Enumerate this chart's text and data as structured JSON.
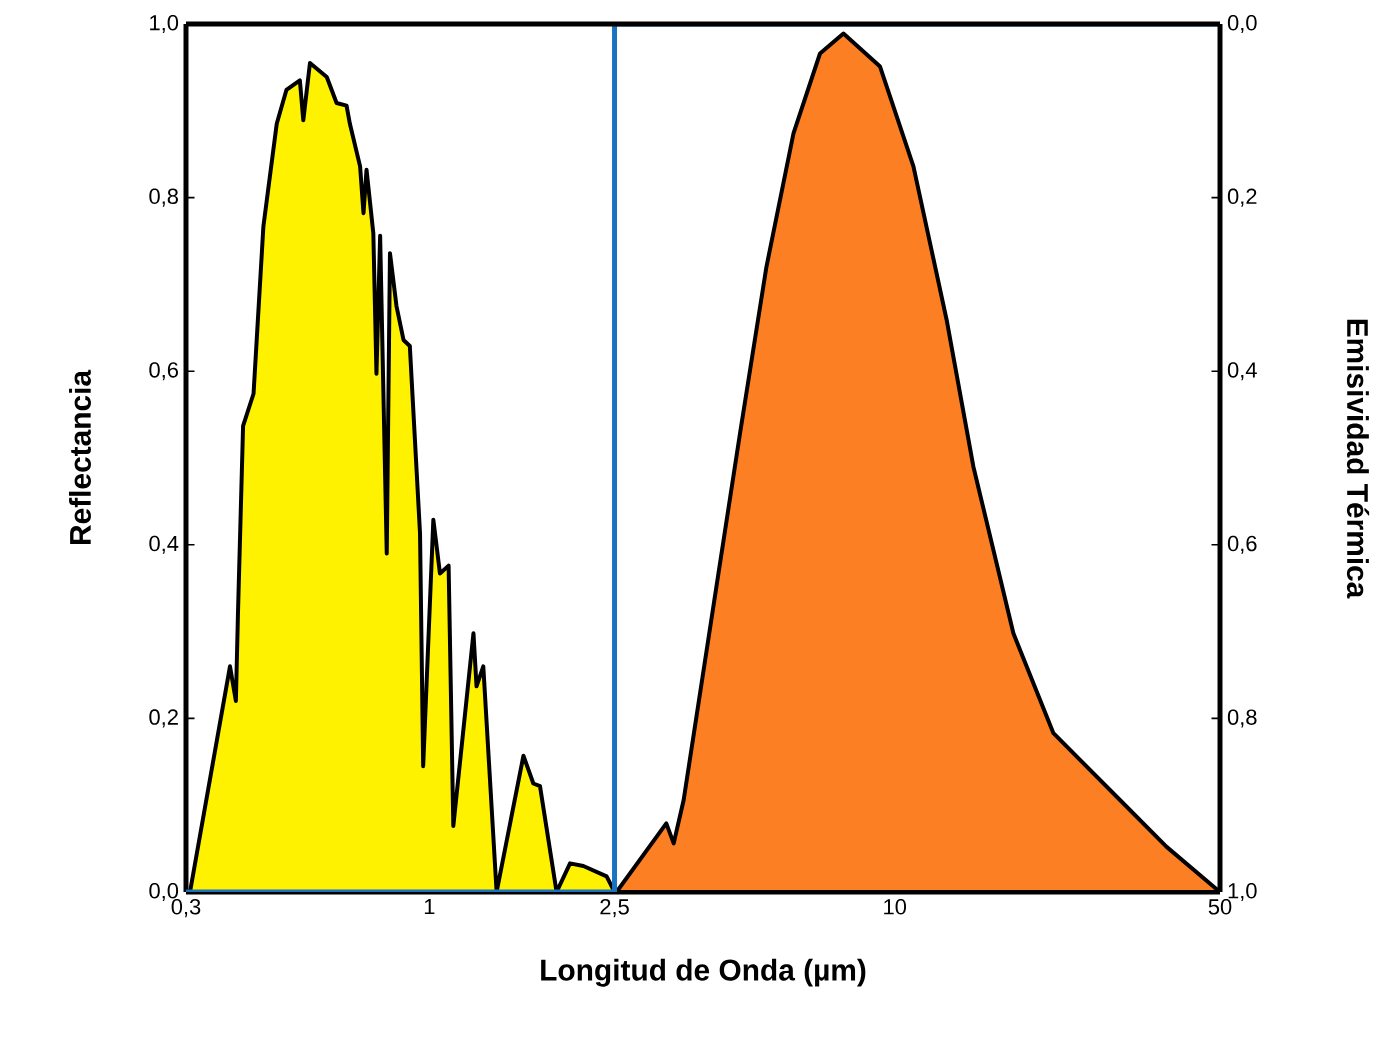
{
  "chart_data": {
    "type": "area",
    "xlabel": "Longitud de Onda (µm)",
    "ylabel": "Reflectancia",
    "y2label": "Emisividad Térmica",
    "log": "x",
    "xlim": [
      0.3,
      50
    ],
    "ylim": [
      0,
      1
    ],
    "y2lim": [
      1,
      0
    ],
    "xticks": [
      {
        "value": 0.3,
        "label": "0,3"
      },
      1,
      {
        "value": 2.5,
        "label": "2,5"
      },
      10,
      50
    ],
    "yticks": [
      {
        "value": 0,
        "label": "0,0"
      },
      {
        "value": 0.2,
        "label": "0,2"
      },
      {
        "value": 0.4,
        "label": "0,4"
      },
      {
        "value": 0.6,
        "label": "0,6"
      },
      {
        "value": 0.8,
        "label": "0,8"
      },
      {
        "value": 1,
        "label": "1,0"
      }
    ],
    "y2ticks": [
      {
        "value": 0,
        "label": "0,0"
      },
      {
        "value": 0.2,
        "label": "0,2"
      },
      {
        "value": 0.4,
        "label": "0,4"
      },
      {
        "value": 0.6,
        "label": "0,6"
      },
      {
        "value": 0.8,
        "label": "0,8"
      },
      {
        "value": 1,
        "label": "1,0"
      }
    ],
    "grid": false,
    "series": [
      {
        "color": "#fff200",
        "x": [
          0.306,
          0.373,
          0.384,
          0.388,
          0.398,
          0.419,
          0.44,
          0.47,
          0.493,
          0.527,
          0.536,
          0.554,
          0.602,
          0.632,
          0.664,
          0.675,
          0.71,
          0.722,
          0.733,
          0.758,
          0.77,
          0.784,
          0.81,
          0.823,
          0.85,
          0.88,
          0.908,
          0.955,
          0.97,
          1.02,
          1.054,
          1.1,
          1.126,
          1.244,
          1.263,
          1.306,
          1.395,
          1.593,
          1.673,
          1.729,
          1.877,
          2.006,
          2.143,
          2.404,
          2.5
        ],
        "values": [
          0,
          0.26,
          0.22,
          0.32,
          0.537,
          0.574,
          0.767,
          0.885,
          0.924,
          0.935,
          0.889,
          0.955,
          0.939,
          0.909,
          0.906,
          0.885,
          0.836,
          0.782,
          0.832,
          0.759,
          0.597,
          0.756,
          0.39,
          0.736,
          0.675,
          0.636,
          0.629,
          0.413,
          0.145,
          0.429,
          0.367,
          0.376,
          0.076,
          0.298,
          0.237,
          0.26,
          0,
          0.157,
          0.125,
          0.122,
          0,
          0.033,
          0.03,
          0.018,
          0
        ]
      },
      {
        "color": "#fd7f23",
        "x": [
          2.525,
          3.23,
          3.35,
          3.52,
          4.08,
          4.65,
          5.3,
          6.06,
          6.91,
          7.76,
          9.3,
          10.97,
          12.93,
          14.76,
          17.99,
          21.93,
          30.48,
          38.4,
          50
        ],
        "values": [
          0,
          0.079,
          0.056,
          0.106,
          0.33,
          0.528,
          0.72,
          0.874,
          0.966,
          0.989,
          0.951,
          0.836,
          0.659,
          0.49,
          0.298,
          0.183,
          0.106,
          0.052,
          0
        ]
      },
      {
        "type": "line",
        "color": "#1a73c0",
        "x": [
          0.3,
          2.5,
          2.5,
          50
        ],
        "values": [
          0,
          0,
          1,
          1
        ]
      }
    ]
  }
}
